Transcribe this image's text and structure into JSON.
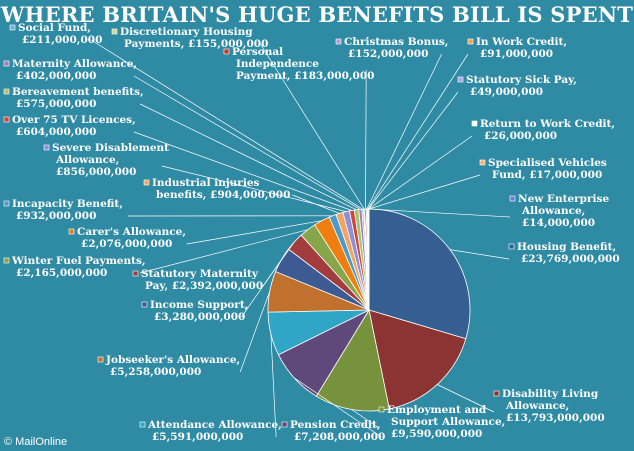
{
  "title": "WHERE BRITAIN'S HUGE BENEFITS BILL IS SPENT",
  "credit": "© MailOnline",
  "chart_data": {
    "type": "pie",
    "title": "WHERE BRITAIN'S HUGE BENEFITS BILL IS SPENT",
    "legend": "none",
    "slices": [
      {
        "name": "Housing Benefit",
        "label": "Housing Benefit,",
        "value_text": "£23,769,000,000",
        "value": 23769000000,
        "color": "#365f91"
      },
      {
        "name": "Disability Living Allowance",
        "label": "Disability Living Allowance,",
        "value_text": "£13,793,000,000",
        "value": 13793000000,
        "color": "#8b3433"
      },
      {
        "name": "Employment and Support Allowance",
        "label": "Employment and Support Allowance,",
        "value_text": "£9,590,000,000",
        "value": 9590000000,
        "color": "#76923c"
      },
      {
        "name": "Pension Credit",
        "label": "Pension Credit,",
        "value_text": "£7,208,000,000",
        "value": 7208000000,
        "color": "#5f497a"
      },
      {
        "name": "Attendance Allowance",
        "label": "Attendance Allowance,",
        "value_text": "£5,591,000,000",
        "value": 5591000000,
        "color": "#31a5c5"
      },
      {
        "name": "Jobseeker's Allowance",
        "label": "Jobseeker's Allowance,",
        "value_text": "£5,258,000,000",
        "value": 5258000000,
        "color": "#c0712d"
      },
      {
        "name": "Income Support",
        "label": "Income Support,",
        "value_text": "£3,280,000,000",
        "value": 3280000000,
        "color": "#3e5a93"
      },
      {
        "name": "Statutory Maternity Pay",
        "label": "Statutory Maternity Pay,",
        "value_text": "£2,392,000,000",
        "value": 2392000000,
        "color": "#a33c3c"
      },
      {
        "name": "Winter Fuel Payments",
        "label": "Winter Fuel Payments,",
        "value_text": "£2,165,000,000",
        "value": 2165000000,
        "color": "#87a64a"
      },
      {
        "name": "Carer's Allowance",
        "label": "Carer's Allowance,",
        "value_text": "£2,076,000,000",
        "value": 2076000000,
        "color": "#f07d10"
      },
      {
        "name": "Incapacity Benefit",
        "label": "Incapacity Benefit,",
        "value_text": "£932,000,000",
        "value": 932000000,
        "color": "#4b9bc6"
      },
      {
        "name": "Industrial injuries benefits",
        "label": "Industrial injuries benefits,",
        "value_text": "£904,000,000",
        "value": 904000000,
        "color": "#f4a460"
      },
      {
        "name": "Severe Disablement Allowance",
        "label": "Severe Disablement Allowance,",
        "value_text": "£856,000,000",
        "value": 856000000,
        "color": "#8d8fd8"
      },
      {
        "name": "Over 75 TV Licences",
        "label": "Over 75 TV Licences,",
        "value_text": "£604,000,000",
        "value": 604000000,
        "color": "#d0453a"
      },
      {
        "name": "Bereavement benefits",
        "label": "Bereavement benefits,",
        "value_text": "£575,000,000",
        "value": 575000000,
        "color": "#a9c46a"
      },
      {
        "name": "Maternity Allowance",
        "label": "Maternity Allowance,",
        "value_text": "£402,000,000",
        "value": 402000000,
        "color": "#9c80bf"
      },
      {
        "name": "Social Fund",
        "label": "Social Fund,",
        "value_text": "£211,000,000",
        "value": 211000000,
        "color": "#6fb4d6"
      },
      {
        "name": "Discretionary Housing Payments",
        "label": "Discretionary Housing Payments,",
        "value_text": "£155,000,000",
        "value": 155000000,
        "color": "#c7d98e"
      },
      {
        "name": "Personal Independence Payment",
        "label": "Personal Independence Payment,",
        "value_text": "£183,000,000",
        "value": 183000000,
        "color": "#c0392b"
      },
      {
        "name": "Christmas Bonus",
        "label": "Christmas Bonus,",
        "value_text": "£152,000,000",
        "value": 152000000,
        "color": "#b39ddb"
      },
      {
        "name": "In Work Credit",
        "label": "In Work Credit,",
        "value_text": "£91,000,000",
        "value": 91000000,
        "color": "#f5a34a"
      },
      {
        "name": "Statutory Sick Pay",
        "label": "Statutory Sick Pay,",
        "value_text": "£49,000,000",
        "value": 49000000,
        "color": "#a5a9e0"
      },
      {
        "name": "Return to Work Credit",
        "label": "Return to Work Credit,",
        "value_text": "£26,000,000",
        "value": 26000000,
        "color": "#ffffff"
      },
      {
        "name": "Specialised Vehicles Fund",
        "label": "Specialised Vehicles Fund,",
        "value_text": "£17,000,000",
        "value": 17000000,
        "color": "#f6b27a"
      },
      {
        "name": "New Enterprise Allowance",
        "label": "New Enterprise Allowance,",
        "value_text": "£14,000,000",
        "value": 14000000,
        "color": "#6a7fd8"
      }
    ]
  }
}
